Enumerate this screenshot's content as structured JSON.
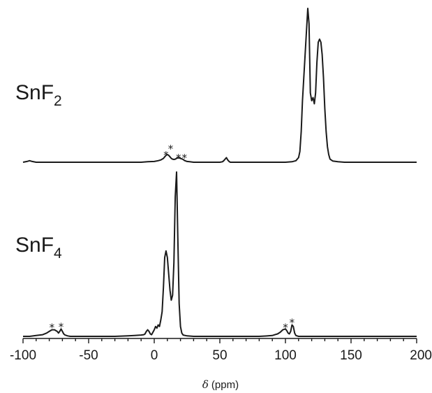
{
  "chart_data": {
    "type": "line",
    "xlabel": {
      "symbol": "δ",
      "unit": "(ppm)"
    },
    "xlim": [
      -100,
      200
    ],
    "xticks": [
      -100,
      -50,
      0,
      50,
      100,
      150,
      200
    ],
    "yaxis_visible": false,
    "grid": false,
    "legend": "none",
    "series": [
      {
        "label": {
          "base": "SnF",
          "sub": "2"
        },
        "x": [
          -100,
          -97,
          -95,
          -93,
          -90,
          -80,
          -70,
          -60,
          -50,
          -40,
          -30,
          -20,
          -10,
          -5,
          0,
          3,
          5,
          6,
          7,
          8,
          9,
          10,
          11,
          12,
          13,
          14,
          15,
          16,
          17,
          18,
          19,
          20,
          21,
          22,
          23,
          24,
          25,
          27,
          30,
          35,
          40,
          45,
          50,
          52,
          53,
          54,
          55,
          56,
          57,
          58,
          60,
          65,
          70,
          80,
          90,
          100,
          105,
          108,
          110,
          111,
          112,
          113,
          114,
          115,
          116,
          117,
          118,
          119,
          120,
          121,
          122,
          123,
          124,
          125,
          126,
          127,
          128,
          129,
          130,
          131,
          132,
          133,
          134,
          136,
          140,
          145,
          150,
          160,
          170,
          180,
          190,
          200
        ],
        "y": [
          0.0,
          0.005,
          0.01,
          0.005,
          0.0,
          0.0,
          0.0,
          0.0,
          0.0,
          0.0,
          0.0,
          0.0,
          0.0,
          0.003,
          0.005,
          0.01,
          0.015,
          0.02,
          0.025,
          0.035,
          0.045,
          0.05,
          0.045,
          0.035,
          0.025,
          0.02,
          0.018,
          0.02,
          0.025,
          0.028,
          0.028,
          0.025,
          0.022,
          0.018,
          0.012,
          0.008,
          0.005,
          0.003,
          0.0,
          0.0,
          0.0,
          0.0,
          0.0,
          0.003,
          0.01,
          0.02,
          0.03,
          0.015,
          0.005,
          0.0,
          0.0,
          0.0,
          0.0,
          0.0,
          0.0,
          0.0,
          0.003,
          0.01,
          0.03,
          0.07,
          0.2,
          0.4,
          0.55,
          0.7,
          0.85,
          1.0,
          0.9,
          0.45,
          0.4,
          0.42,
          0.38,
          0.45,
          0.65,
          0.78,
          0.8,
          0.78,
          0.7,
          0.55,
          0.35,
          0.2,
          0.1,
          0.05,
          0.02,
          0.008,
          0.003,
          0.0,
          0.0,
          0.0,
          0.0,
          0.0,
          0.0,
          0.0
        ],
        "annotations": [
          {
            "text": "*",
            "x": 9,
            "y": 0.06
          },
          {
            "text": "*",
            "x": 12.5,
            "y": 0.1
          },
          {
            "text": "*",
            "x": 18.5,
            "y": 0.04
          },
          {
            "text": "*",
            "x": 23,
            "y": 0.04
          }
        ]
      },
      {
        "label": {
          "base": "SnF",
          "sub": "4"
        },
        "x": [
          -100,
          -95,
          -90,
          -85,
          -82,
          -80,
          -78,
          -76,
          -74,
          -73,
          -72,
          -71,
          -70,
          -69,
          -68,
          -66,
          -64,
          -60,
          -50,
          -40,
          -30,
          -20,
          -15,
          -10,
          -8,
          -7,
          -6,
          -5,
          -4,
          -3,
          -2,
          -1,
          0,
          1,
          2,
          3,
          4,
          5,
          6,
          7,
          8,
          9,
          10,
          11,
          12,
          13,
          14,
          15,
          16,
          17,
          18,
          19,
          20,
          21,
          22,
          25,
          30,
          40,
          50,
          60,
          70,
          80,
          85,
          90,
          92,
          94,
          96,
          98,
          100,
          101,
          102,
          103,
          104,
          105,
          106,
          107,
          108,
          110,
          115,
          120,
          130,
          140,
          150,
          160,
          170,
          180,
          190,
          200
        ],
        "y": [
          0.0,
          0.0,
          0.005,
          0.01,
          0.02,
          0.03,
          0.04,
          0.04,
          0.03,
          0.02,
          0.03,
          0.045,
          0.03,
          0.015,
          0.008,
          0.003,
          0.0,
          0.0,
          0.0,
          0.0,
          0.0,
          0.003,
          0.005,
          0.008,
          0.01,
          0.015,
          0.03,
          0.04,
          0.03,
          0.015,
          0.01,
          0.025,
          0.04,
          0.06,
          0.05,
          0.07,
          0.06,
          0.1,
          0.15,
          0.3,
          0.48,
          0.52,
          0.48,
          0.38,
          0.28,
          0.22,
          0.25,
          0.45,
          0.85,
          1.0,
          0.6,
          0.2,
          0.06,
          0.02,
          0.008,
          0.003,
          0.0,
          0.0,
          0.0,
          0.0,
          0.0,
          0.0,
          0.002,
          0.005,
          0.01,
          0.015,
          0.025,
          0.04,
          0.045,
          0.035,
          0.02,
          0.015,
          0.03,
          0.07,
          0.06,
          0.02,
          0.005,
          0.0,
          0.0,
          0.0,
          0.0,
          0.0,
          0.0,
          0.0,
          0.0,
          0.0,
          0.0,
          0.0
        ],
        "annotations": [
          {
            "text": "*",
            "x": -78,
            "y": 0.065
          },
          {
            "text": "*",
            "x": -71,
            "y": 0.07
          },
          {
            "text": "*",
            "x": 100,
            "y": 0.065
          },
          {
            "text": "*",
            "x": 105,
            "y": 0.095
          }
        ]
      }
    ]
  }
}
